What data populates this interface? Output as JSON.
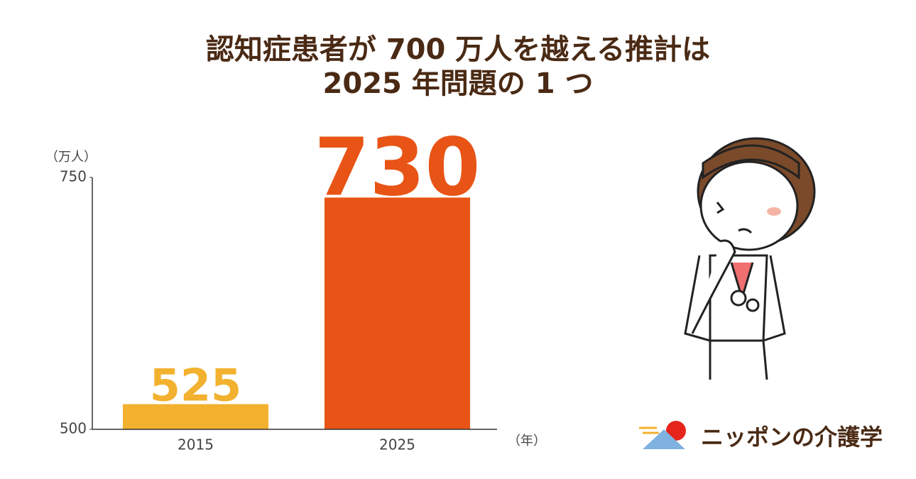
{
  "chart_data": {
    "type": "bar",
    "title": [
      "認知症患者が 700 万人を越える推計は",
      "2025 年問題の 1 つ"
    ],
    "y_unit": "（万人）",
    "x_unit": "（年）",
    "categories": [
      "2015",
      "2025"
    ],
    "values": [
      525,
      730
    ],
    "colors": [
      "#f2b12e",
      "#e85415"
    ],
    "ylim": [
      500,
      750
    ],
    "yticks": [
      500,
      750
    ]
  },
  "brand": "ニッポンの介護学"
}
